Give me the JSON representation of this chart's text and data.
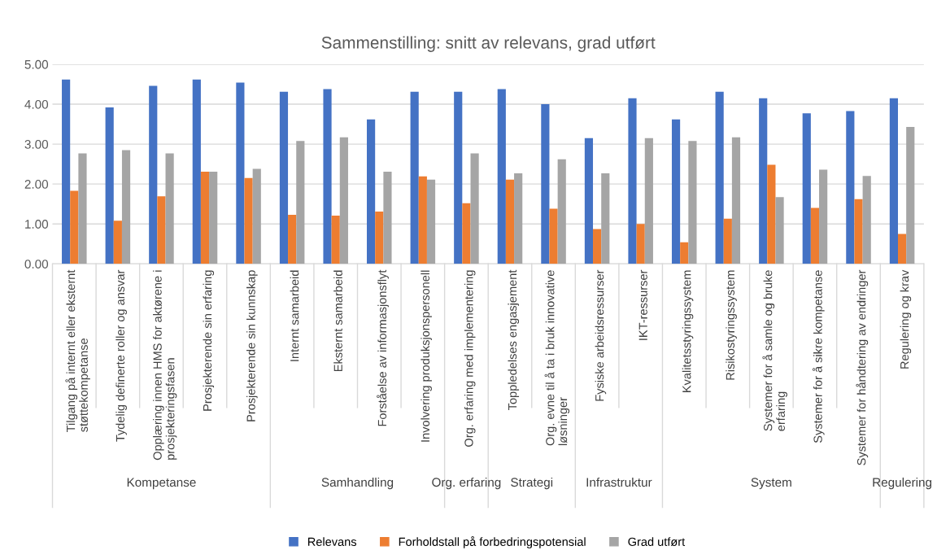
{
  "chart_data": {
    "type": "bar",
    "title": "Sammenstilling: snitt av relevans, grad utført",
    "categories": [
      "Tilgang på internt eller eksternt\nstøttekompetanse",
      "Tydelig definerte roller og ansvar",
      "Opplæring innen HMS for aktørene i\nprosjekteringsfasen",
      "Prosjekterende sin erfaring",
      "Prosjekterende sin kunnskap",
      "Internt samarbeid",
      "Eksternt samarbeid",
      "Forståelse av informasjonsflyt",
      "Involvering produksjonspersonell",
      "Org. erfaring med implementering",
      "Toppledelses engasjement",
      "Org. evne til å ta i bruk innovative\nløsninger",
      "Fysiske arbeidsressurser",
      "IKT-ressurser",
      "Kvalitetsstyringssystem",
      "Risikostyringssystem",
      "Systemer for å samle og bruke\nerfaring",
      "Systemer for å sikre kompetanse",
      "Systemer for håndtering av endringer",
      "Regulering og krav"
    ],
    "series": [
      {
        "name": "Relevans",
        "color": "#4472c4",
        "values": [
          4.62,
          3.92,
          4.46,
          4.62,
          4.54,
          4.31,
          4.38,
          3.62,
          4.31,
          4.31,
          4.38,
          4.0,
          3.15,
          4.15,
          3.62,
          4.31,
          4.15,
          3.77,
          3.83,
          4.15
        ]
      },
      {
        "name": "Forholdstall på forbedringspotensial",
        "color": "#ed7d31",
        "values": [
          1.83,
          1.08,
          1.69,
          2.31,
          2.15,
          1.23,
          1.21,
          1.31,
          2.19,
          1.52,
          2.11,
          1.38,
          0.87,
          1.0,
          0.54,
          1.13,
          2.48,
          1.4,
          1.62,
          0.75
        ]
      },
      {
        "name": "Grad utført",
        "color": "#a5a5a5",
        "values": [
          2.77,
          2.85,
          2.77,
          2.31,
          2.38,
          3.08,
          3.17,
          2.31,
          2.11,
          2.77,
          2.27,
          2.62,
          2.27,
          3.15,
          3.08,
          3.17,
          1.67,
          2.36,
          2.2,
          3.43
        ]
      }
    ],
    "annotations": [
      "Kompetanse",
      "Samhandling",
      "Org. erfaring",
      "Strategi",
      "Infrastruktur",
      "System",
      "Regulering"
    ],
    "ylim": [
      0,
      5
    ],
    "yticks": [
      {
        "value": 0,
        "label": "0.00"
      },
      {
        "value": 1,
        "label": "1.00"
      },
      {
        "value": 2,
        "label": "2.00"
      },
      {
        "value": 3,
        "label": "3.00"
      },
      {
        "value": 4,
        "label": "4.00"
      },
      {
        "value": 5,
        "label": "5.00"
      }
    ],
    "grid": "y",
    "legend": "bottom"
  }
}
